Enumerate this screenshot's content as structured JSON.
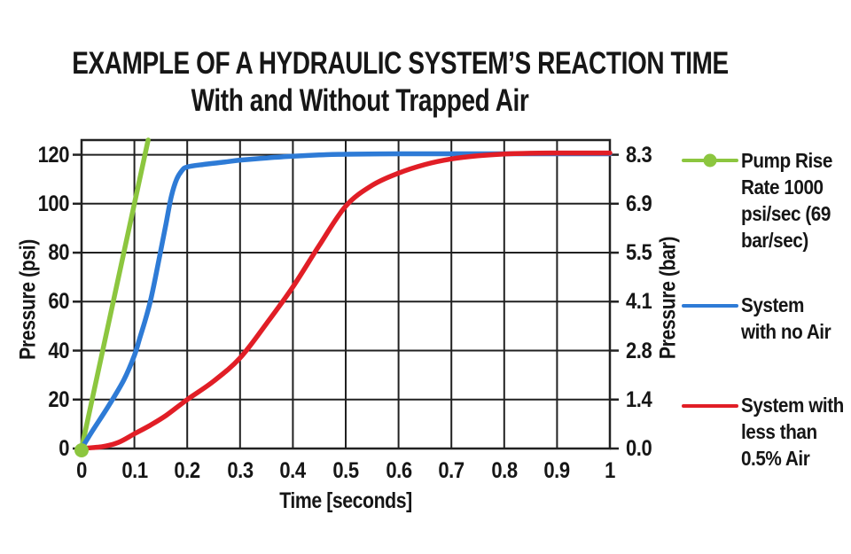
{
  "chart_data": {
    "type": "line",
    "title": "EXAMPLE OF A HYDRAULIC SYSTEM’S REACTION TIME",
    "subtitle": "With and Without Trapped Air",
    "xlabel": "Time [seconds]",
    "ylabel_left": "Pressure (psi)",
    "ylabel_right": "Pressure (bar)",
    "xlim": [
      0,
      1
    ],
    "ylim_psi": [
      0,
      126
    ],
    "ylim_bar": [
      0.0,
      8.3
    ],
    "grid": true,
    "legend_position": "right",
    "x_ticks": [
      "0",
      "0.1",
      "0.2",
      "0.3",
      "0.4",
      "0.5",
      "0.6",
      "0.7",
      "0.8",
      "0.9",
      "1"
    ],
    "y_left_ticks": [
      "0",
      "20",
      "40",
      "60",
      "80",
      "100",
      "120"
    ],
    "y_right_ticks": [
      "0.0",
      "1.4",
      "2.8",
      "4.1",
      "5.5",
      "6.9",
      "8.3"
    ],
    "colors": {
      "grid": "#212121",
      "frame": "#212121",
      "text": "#161616",
      "background": "#ffffff"
    },
    "series": [
      {
        "name": "Pump Rise Rate 1000 psi/sec (69 bar/sec)",
        "legend_label": "Pump Rise\nRate 1000\npsi/sec (69\nbar/sec)",
        "color": "#8CC63F",
        "marker_at_origin": true,
        "points": [
          [
            0,
            0
          ],
          [
            0.126,
            126
          ]
        ]
      },
      {
        "name": "System with no Air",
        "legend_label": "System\nwith no Air",
        "color": "#2E7BD6",
        "marker_at_origin": false,
        "points": [
          [
            0,
            0
          ],
          [
            0.02,
            7
          ],
          [
            0.05,
            17
          ],
          [
            0.08,
            28
          ],
          [
            0.1,
            38
          ],
          [
            0.11,
            45
          ],
          [
            0.12,
            52
          ],
          [
            0.13,
            60
          ],
          [
            0.14,
            70
          ],
          [
            0.15,
            81
          ],
          [
            0.16,
            92
          ],
          [
            0.17,
            103
          ],
          [
            0.18,
            110
          ],
          [
            0.19,
            113.5
          ],
          [
            0.2,
            115
          ],
          [
            0.23,
            116
          ],
          [
            0.27,
            117
          ],
          [
            0.3,
            117.8
          ],
          [
            0.35,
            118.7
          ],
          [
            0.4,
            119.4
          ],
          [
            0.45,
            119.9
          ],
          [
            0.5,
            120.2
          ],
          [
            0.6,
            120.4
          ],
          [
            0.7,
            120.4
          ],
          [
            0.8,
            120.4
          ],
          [
            0.9,
            120.4
          ],
          [
            1,
            120.4
          ]
        ]
      },
      {
        "name": "System with less than 0.5% Air",
        "legend_label": "System with\nless than\n0.5% Air",
        "color": "#E11E26",
        "marker_at_origin": false,
        "points": [
          [
            0,
            0
          ],
          [
            0.04,
            0.8
          ],
          [
            0.07,
            2.5
          ],
          [
            0.1,
            6
          ],
          [
            0.13,
            9.5
          ],
          [
            0.16,
            13.5
          ],
          [
            0.2,
            20
          ],
          [
            0.25,
            27.5
          ],
          [
            0.3,
            37
          ],
          [
            0.35,
            51
          ],
          [
            0.4,
            66
          ],
          [
            0.45,
            83
          ],
          [
            0.5,
            99
          ],
          [
            0.55,
            107.5
          ],
          [
            0.6,
            112.5
          ],
          [
            0.65,
            116
          ],
          [
            0.7,
            118.3
          ],
          [
            0.75,
            119.6
          ],
          [
            0.8,
            120.3
          ],
          [
            0.85,
            120.6
          ],
          [
            0.9,
            120.7
          ],
          [
            1,
            120.7
          ]
        ]
      }
    ]
  }
}
